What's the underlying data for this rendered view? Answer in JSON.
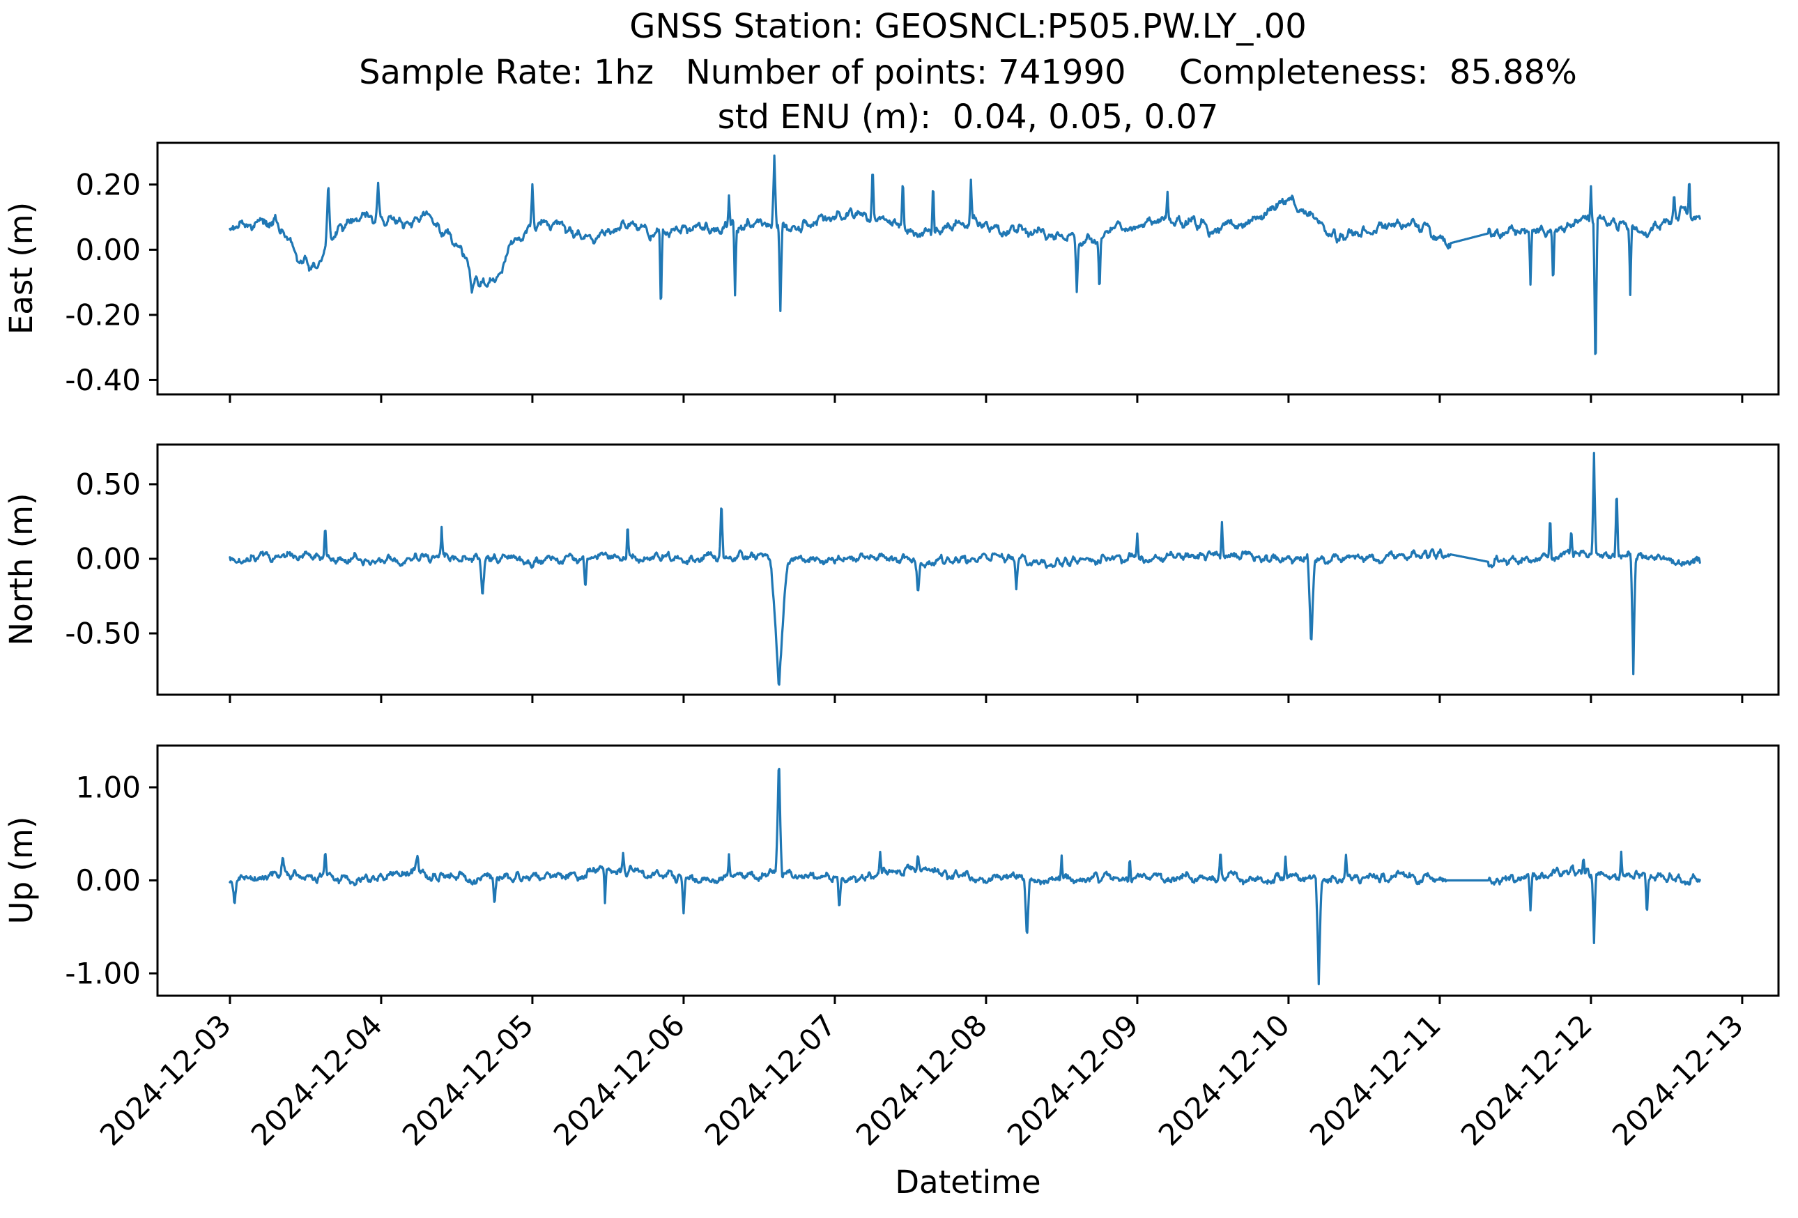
{
  "title": {
    "line1": "GNSS Station: GEOSNCL:P505.PW.LY_.00",
    "line2": "Sample Rate: 1hz   Number of points: 741990     Completeness:  85.88%",
    "line3": "std ENU (m):  0.04, 0.05, 0.07"
  },
  "station_info": {
    "station_id": "GEOSNCL:P505.PW.LY_.00",
    "sample_rate": "1hz",
    "number_of_points": 741990,
    "completeness_percent": 85.88,
    "std_enu_m": [
      0.04,
      0.05,
      0.07
    ]
  },
  "xlabel": "Datetime",
  "chart_data": {
    "type": "line",
    "line_color": "#1f77b4",
    "axis_color": "#000000",
    "background": "#ffffff",
    "x_unit": "days since 2024-12-03 00:00",
    "x_data_start": 0.0,
    "x_data_end": 9.72,
    "xlim": [
      -0.479,
      10.24
    ],
    "x_tick_days": [
      0,
      1,
      2,
      3,
      4,
      5,
      6,
      7,
      8,
      9,
      10
    ],
    "x_tick_labels": [
      "2024-12-03",
      "2024-12-04",
      "2024-12-05",
      "2024-12-06",
      "2024-12-07",
      "2024-12-08",
      "2024-12-09",
      "2024-12-10",
      "2024-12-11",
      "2024-12-12",
      "2024-12-13"
    ],
    "legend": "none",
    "grid": false,
    "panels": [
      {
        "name": "East",
        "ylabel": "East (m)",
        "ylim": [
          -0.444,
          0.328
        ],
        "ytick_values": [
          0.2,
          0.0,
          -0.2,
          -0.4
        ],
        "ytick_labels": [
          "0.20",
          "0.00",
          "-0.20",
          "-0.40"
        ],
        "data_min": -0.41,
        "data_max": 0.295,
        "baseline_anchors": [
          [
            0,
            0.07
          ],
          [
            0.3,
            0.09
          ],
          [
            0.45,
            -0.02
          ],
          [
            0.55,
            -0.06
          ],
          [
            0.7,
            0.05
          ],
          [
            0.9,
            0.1
          ],
          [
            1.1,
            0.08
          ],
          [
            1.3,
            0.1
          ],
          [
            1.5,
            0.02
          ],
          [
            1.62,
            -0.09
          ],
          [
            1.75,
            -0.1
          ],
          [
            1.85,
            0.0
          ],
          [
            2.0,
            0.08
          ],
          [
            2.2,
            0.07
          ],
          [
            2.4,
            0.04
          ],
          [
            2.6,
            0.08
          ],
          [
            2.8,
            0.05
          ],
          [
            3.0,
            0.07
          ],
          [
            3.2,
            0.06
          ],
          [
            3.5,
            0.08
          ],
          [
            3.7,
            0.06
          ],
          [
            3.9,
            0.1
          ],
          [
            4.1,
            0.11
          ],
          [
            4.3,
            0.1
          ],
          [
            4.5,
            0.06
          ],
          [
            4.7,
            0.05
          ],
          [
            4.9,
            0.09
          ],
          [
            5.1,
            0.06
          ],
          [
            5.3,
            0.05
          ],
          [
            5.5,
            0.04
          ],
          [
            5.7,
            0.03
          ],
          [
            5.9,
            0.07
          ],
          [
            6.1,
            0.09
          ],
          [
            6.3,
            0.09
          ],
          [
            6.5,
            0.06
          ],
          [
            6.7,
            0.08
          ],
          [
            6.9,
            0.13
          ],
          [
            7.0,
            0.15
          ],
          [
            7.1,
            0.12
          ],
          [
            7.3,
            0.04
          ],
          [
            7.5,
            0.06
          ],
          [
            7.7,
            0.08
          ],
          [
            7.9,
            0.07
          ],
          [
            8.07,
            0.02
          ],
          [
            8.32,
            0.05
          ],
          [
            8.5,
            0.07
          ],
          [
            8.7,
            0.06
          ],
          [
            8.9,
            0.08
          ],
          [
            9.1,
            0.09
          ],
          [
            9.3,
            0.05
          ],
          [
            9.5,
            0.08
          ],
          [
            9.6,
            0.12
          ],
          [
            9.72,
            0.09
          ]
        ],
        "spikes": [
          [
            0.65,
            0.21,
            0.02
          ],
          [
            0.98,
            0.195,
            0.015
          ],
          [
            1.6,
            -0.13,
            0.03
          ],
          [
            2.0,
            0.2,
            0.015
          ],
          [
            2.85,
            -0.21,
            0.012
          ],
          [
            3.3,
            0.16,
            0.012
          ],
          [
            3.34,
            -0.13,
            0.012
          ],
          [
            3.6,
            0.295,
            0.018
          ],
          [
            3.64,
            -0.195,
            0.015
          ],
          [
            4.25,
            0.26,
            0.012
          ],
          [
            4.45,
            0.21,
            0.012
          ],
          [
            4.65,
            0.235,
            0.012
          ],
          [
            4.9,
            0.21,
            0.012
          ],
          [
            5.6,
            -0.12,
            0.015
          ],
          [
            5.75,
            -0.12,
            0.012
          ],
          [
            6.2,
            0.16,
            0.012
          ],
          [
            8.6,
            -0.1,
            0.012
          ],
          [
            8.75,
            -0.12,
            0.012
          ],
          [
            9.0,
            0.2,
            0.012
          ],
          [
            9.03,
            -0.41,
            0.015
          ],
          [
            9.26,
            -0.145,
            0.012
          ],
          [
            9.55,
            0.17,
            0.01
          ],
          [
            9.65,
            0.24,
            0.012
          ]
        ],
        "gaps": [
          [
            8.07,
            8.32
          ]
        ],
        "noise": {
          "med_amp": 0.018,
          "med_scale": 0.025,
          "fine_amp": 0.008,
          "fine_scale": 0.005,
          "seed": 11
        }
      },
      {
        "name": "North",
        "ylabel": "North (m)",
        "ylim": [
          -0.911,
          0.766
        ],
        "ytick_values": [
          0.5,
          0.0,
          -0.5
        ],
        "ytick_labels": [
          "0.50",
          "0.00",
          "-0.50"
        ],
        "data_min": -0.87,
        "data_max": 0.68,
        "baseline_anchors": [
          [
            0,
            0.0
          ],
          [
            0.5,
            0.02
          ],
          [
            1.0,
            -0.01
          ],
          [
            1.5,
            0.01
          ],
          [
            2.0,
            -0.02
          ],
          [
            2.5,
            0.02
          ],
          [
            3.0,
            0.0
          ],
          [
            3.5,
            0.02
          ],
          [
            3.63,
            -0.05
          ],
          [
            3.8,
            0.0
          ],
          [
            4.2,
            0.01
          ],
          [
            4.6,
            -0.02
          ],
          [
            5.0,
            0.02
          ],
          [
            5.4,
            -0.03
          ],
          [
            5.8,
            0.0
          ],
          [
            6.2,
            0.01
          ],
          [
            6.6,
            0.02
          ],
          [
            7.0,
            -0.01
          ],
          [
            7.4,
            0.0
          ],
          [
            7.8,
            0.02
          ],
          [
            8.07,
            0.03
          ],
          [
            8.32,
            -0.02
          ],
          [
            8.6,
            0.0
          ],
          [
            8.9,
            0.03
          ],
          [
            9.2,
            0.02
          ],
          [
            9.5,
            0.0
          ],
          [
            9.72,
            -0.03
          ]
        ],
        "spikes": [
          [
            0.63,
            0.22,
            0.012
          ],
          [
            1.4,
            0.18,
            0.012
          ],
          [
            1.67,
            -0.25,
            0.02
          ],
          [
            2.35,
            -0.2,
            0.015
          ],
          [
            2.63,
            0.27,
            0.012
          ],
          [
            3.25,
            0.39,
            0.015
          ],
          [
            3.63,
            -0.87,
            0.06
          ],
          [
            4.55,
            -0.22,
            0.02
          ],
          [
            5.2,
            -0.18,
            0.015
          ],
          [
            6.0,
            0.15,
            0.012
          ],
          [
            6.56,
            0.26,
            0.012
          ],
          [
            7.15,
            -0.61,
            0.025
          ],
          [
            8.73,
            0.33,
            0.012
          ],
          [
            8.87,
            0.22,
            0.012
          ],
          [
            9.02,
            0.68,
            0.015
          ],
          [
            9.17,
            0.5,
            0.013
          ],
          [
            9.28,
            -0.75,
            0.018
          ]
        ],
        "gaps": [
          [
            8.07,
            8.32
          ]
        ],
        "noise": {
          "med_amp": 0.03,
          "med_scale": 0.025,
          "fine_amp": 0.015,
          "fine_scale": 0.005,
          "seed": 22
        }
      },
      {
        "name": "Up",
        "ylabel": "Up (m)",
        "ylim": [
          -1.24,
          1.449
        ],
        "ytick_values": [
          1.0,
          0.0,
          -1.0
        ],
        "ytick_labels": [
          "1.00",
          "0.00",
          "-1.00"
        ],
        "data_min": -1.15,
        "data_max": 1.35,
        "baseline_anchors": [
          [
            0,
            0.02
          ],
          [
            0.3,
            0.08
          ],
          [
            0.45,
            0.06
          ],
          [
            0.63,
            0.03
          ],
          [
            0.9,
            0.0
          ],
          [
            1.2,
            0.1
          ],
          [
            1.35,
            0.05
          ],
          [
            1.6,
            0.02
          ],
          [
            1.9,
            0.04
          ],
          [
            2.2,
            0.03
          ],
          [
            2.55,
            0.12
          ],
          [
            2.7,
            0.08
          ],
          [
            3.0,
            0.02
          ],
          [
            3.3,
            0.04
          ],
          [
            3.55,
            0.06
          ],
          [
            3.8,
            0.04
          ],
          [
            4.1,
            0.02
          ],
          [
            4.4,
            0.1
          ],
          [
            4.55,
            0.12
          ],
          [
            4.7,
            0.06
          ],
          [
            5.0,
            0.03
          ],
          [
            5.3,
            0.02
          ],
          [
            5.6,
            0.04
          ],
          [
            5.9,
            0.02
          ],
          [
            6.2,
            0.03
          ],
          [
            6.5,
            0.05
          ],
          [
            6.8,
            0.02
          ],
          [
            7.1,
            0.03
          ],
          [
            7.5,
            0.02
          ],
          [
            7.8,
            0.04
          ],
          [
            8.04,
            0.0
          ],
          [
            8.32,
            0.0
          ],
          [
            8.6,
            0.03
          ],
          [
            8.9,
            0.1
          ],
          [
            9.1,
            0.05
          ],
          [
            9.4,
            0.03
          ],
          [
            9.72,
            0.0
          ]
        ],
        "spikes": [
          [
            0.03,
            -0.27,
            0.02
          ],
          [
            0.35,
            0.25,
            0.015
          ],
          [
            0.63,
            0.28,
            0.012
          ],
          [
            1.24,
            0.3,
            0.02
          ],
          [
            1.75,
            -0.3,
            0.015
          ],
          [
            2.48,
            -0.28,
            0.012
          ],
          [
            2.6,
            0.3,
            0.015
          ],
          [
            3.0,
            -0.35,
            0.015
          ],
          [
            3.3,
            0.25,
            0.012
          ],
          [
            3.63,
            1.35,
            0.022
          ],
          [
            4.03,
            -0.3,
            0.015
          ],
          [
            4.3,
            0.3,
            0.012
          ],
          [
            4.55,
            0.32,
            0.015
          ],
          [
            5.27,
            -0.62,
            0.02
          ],
          [
            5.5,
            0.28,
            0.012
          ],
          [
            5.95,
            0.3,
            0.012
          ],
          [
            6.55,
            0.3,
            0.012
          ],
          [
            6.98,
            0.28,
            0.012
          ],
          [
            7.2,
            -1.15,
            0.022
          ],
          [
            7.38,
            0.25,
            0.012
          ],
          [
            8.6,
            -0.35,
            0.015
          ],
          [
            8.95,
            0.3,
            0.012
          ],
          [
            9.02,
            -0.65,
            0.015
          ],
          [
            9.2,
            0.3,
            0.01
          ],
          [
            9.37,
            -0.38,
            0.013
          ]
        ],
        "gaps": [
          [
            8.04,
            8.32
          ]
        ],
        "noise": {
          "med_amp": 0.05,
          "med_scale": 0.025,
          "fine_amp": 0.025,
          "fine_scale": 0.005,
          "seed": 33
        }
      }
    ]
  }
}
